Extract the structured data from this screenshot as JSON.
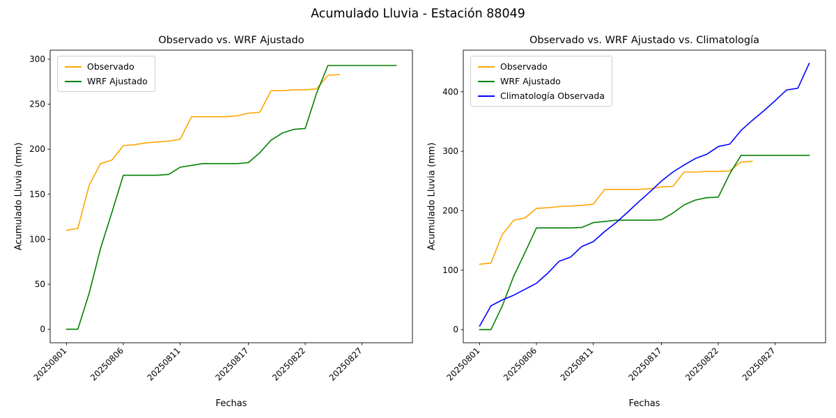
{
  "figure": {
    "suptitle": "Acumulado Lluvia - Estación 88049"
  },
  "chart_data": [
    {
      "type": "line",
      "title": "Observado vs. WRF Ajustado",
      "xlabel": "Fechas",
      "ylabel": "Acumulado Lluvia (mm)",
      "legend_position": "upper left",
      "grid": false,
      "x": [
        "20250801",
        "20250802",
        "20250803",
        "20250804",
        "20250805",
        "20250806",
        "20250807",
        "20250808",
        "20250809",
        "20250810",
        "20250811",
        "20250812",
        "20250813",
        "20250814",
        "20250815",
        "20250816",
        "20250817",
        "20250818",
        "20250819",
        "20250820",
        "20250821",
        "20250822",
        "20250823",
        "20250824",
        "20250825",
        "20250826",
        "20250827",
        "20250828",
        "20250829",
        "20250830"
      ],
      "xtick_labels": [
        "20250801",
        "20250806",
        "20250811",
        "20250817",
        "20250822",
        "20250827"
      ],
      "ytick_values": [
        0,
        50,
        100,
        150,
        200,
        250,
        300
      ],
      "ylim": [
        -15,
        310
      ],
      "series": [
        {
          "name": "Observado",
          "color": "#FFA500",
          "values": [
            110,
            112,
            160,
            184,
            188,
            204,
            205,
            207,
            208,
            209,
            211,
            236,
            236,
            236,
            236,
            237,
            240,
            241,
            265,
            265,
            266,
            266,
            267,
            282,
            283
          ]
        },
        {
          "name": "WRF Ajustado",
          "color": "#008000",
          "values": [
            0,
            0,
            40,
            90,
            130,
            171,
            171,
            171,
            171,
            172,
            180,
            182,
            184,
            184,
            184,
            184,
            185,
            196,
            210,
            218,
            222,
            223,
            262,
            293,
            293,
            293,
            293,
            293,
            293,
            293
          ]
        }
      ]
    },
    {
      "type": "line",
      "title": "Observado vs. WRF Ajustado vs. Climatología",
      "xlabel": "Fechas",
      "ylabel": "Acumulado Lluvia (mm)",
      "legend_position": "upper left",
      "grid": false,
      "x": [
        "20250801",
        "20250802",
        "20250803",
        "20250804",
        "20250805",
        "20250806",
        "20250807",
        "20250808",
        "20250809",
        "20250810",
        "20250811",
        "20250812",
        "20250813",
        "20250814",
        "20250815",
        "20250816",
        "20250817",
        "20250818",
        "20250819",
        "20250820",
        "20250821",
        "20250822",
        "20250823",
        "20250824",
        "20250825",
        "20250826",
        "20250827",
        "20250828",
        "20250829",
        "20250830"
      ],
      "xtick_labels": [
        "20250801",
        "20250806",
        "20250811",
        "20250817",
        "20250822",
        "20250827"
      ],
      "ytick_values": [
        0,
        100,
        200,
        300,
        400
      ],
      "ylim": [
        -22,
        470
      ],
      "series": [
        {
          "name": "Observado",
          "color": "#FFA500",
          "values": [
            110,
            112,
            160,
            184,
            188,
            204,
            205,
            207,
            208,
            209,
            211,
            236,
            236,
            236,
            236,
            237,
            240,
            241,
            265,
            265,
            266,
            266,
            267,
            282,
            283
          ]
        },
        {
          "name": "WRF Ajustado",
          "color": "#008000",
          "values": [
            0,
            0,
            40,
            90,
            130,
            171,
            171,
            171,
            171,
            172,
            180,
            182,
            184,
            184,
            184,
            184,
            185,
            196,
            210,
            218,
            222,
            223,
            262,
            293,
            293,
            293,
            293,
            293,
            293,
            293
          ]
        },
        {
          "name": "Climatología Observada",
          "color": "#0000FF",
          "values": [
            6,
            40,
            50,
            58,
            68,
            78,
            95,
            115,
            122,
            140,
            148,
            165,
            180,
            197,
            215,
            232,
            250,
            265,
            277,
            288,
            295,
            308,
            312,
            335,
            352,
            368,
            385,
            403,
            406,
            448
          ]
        }
      ]
    }
  ]
}
